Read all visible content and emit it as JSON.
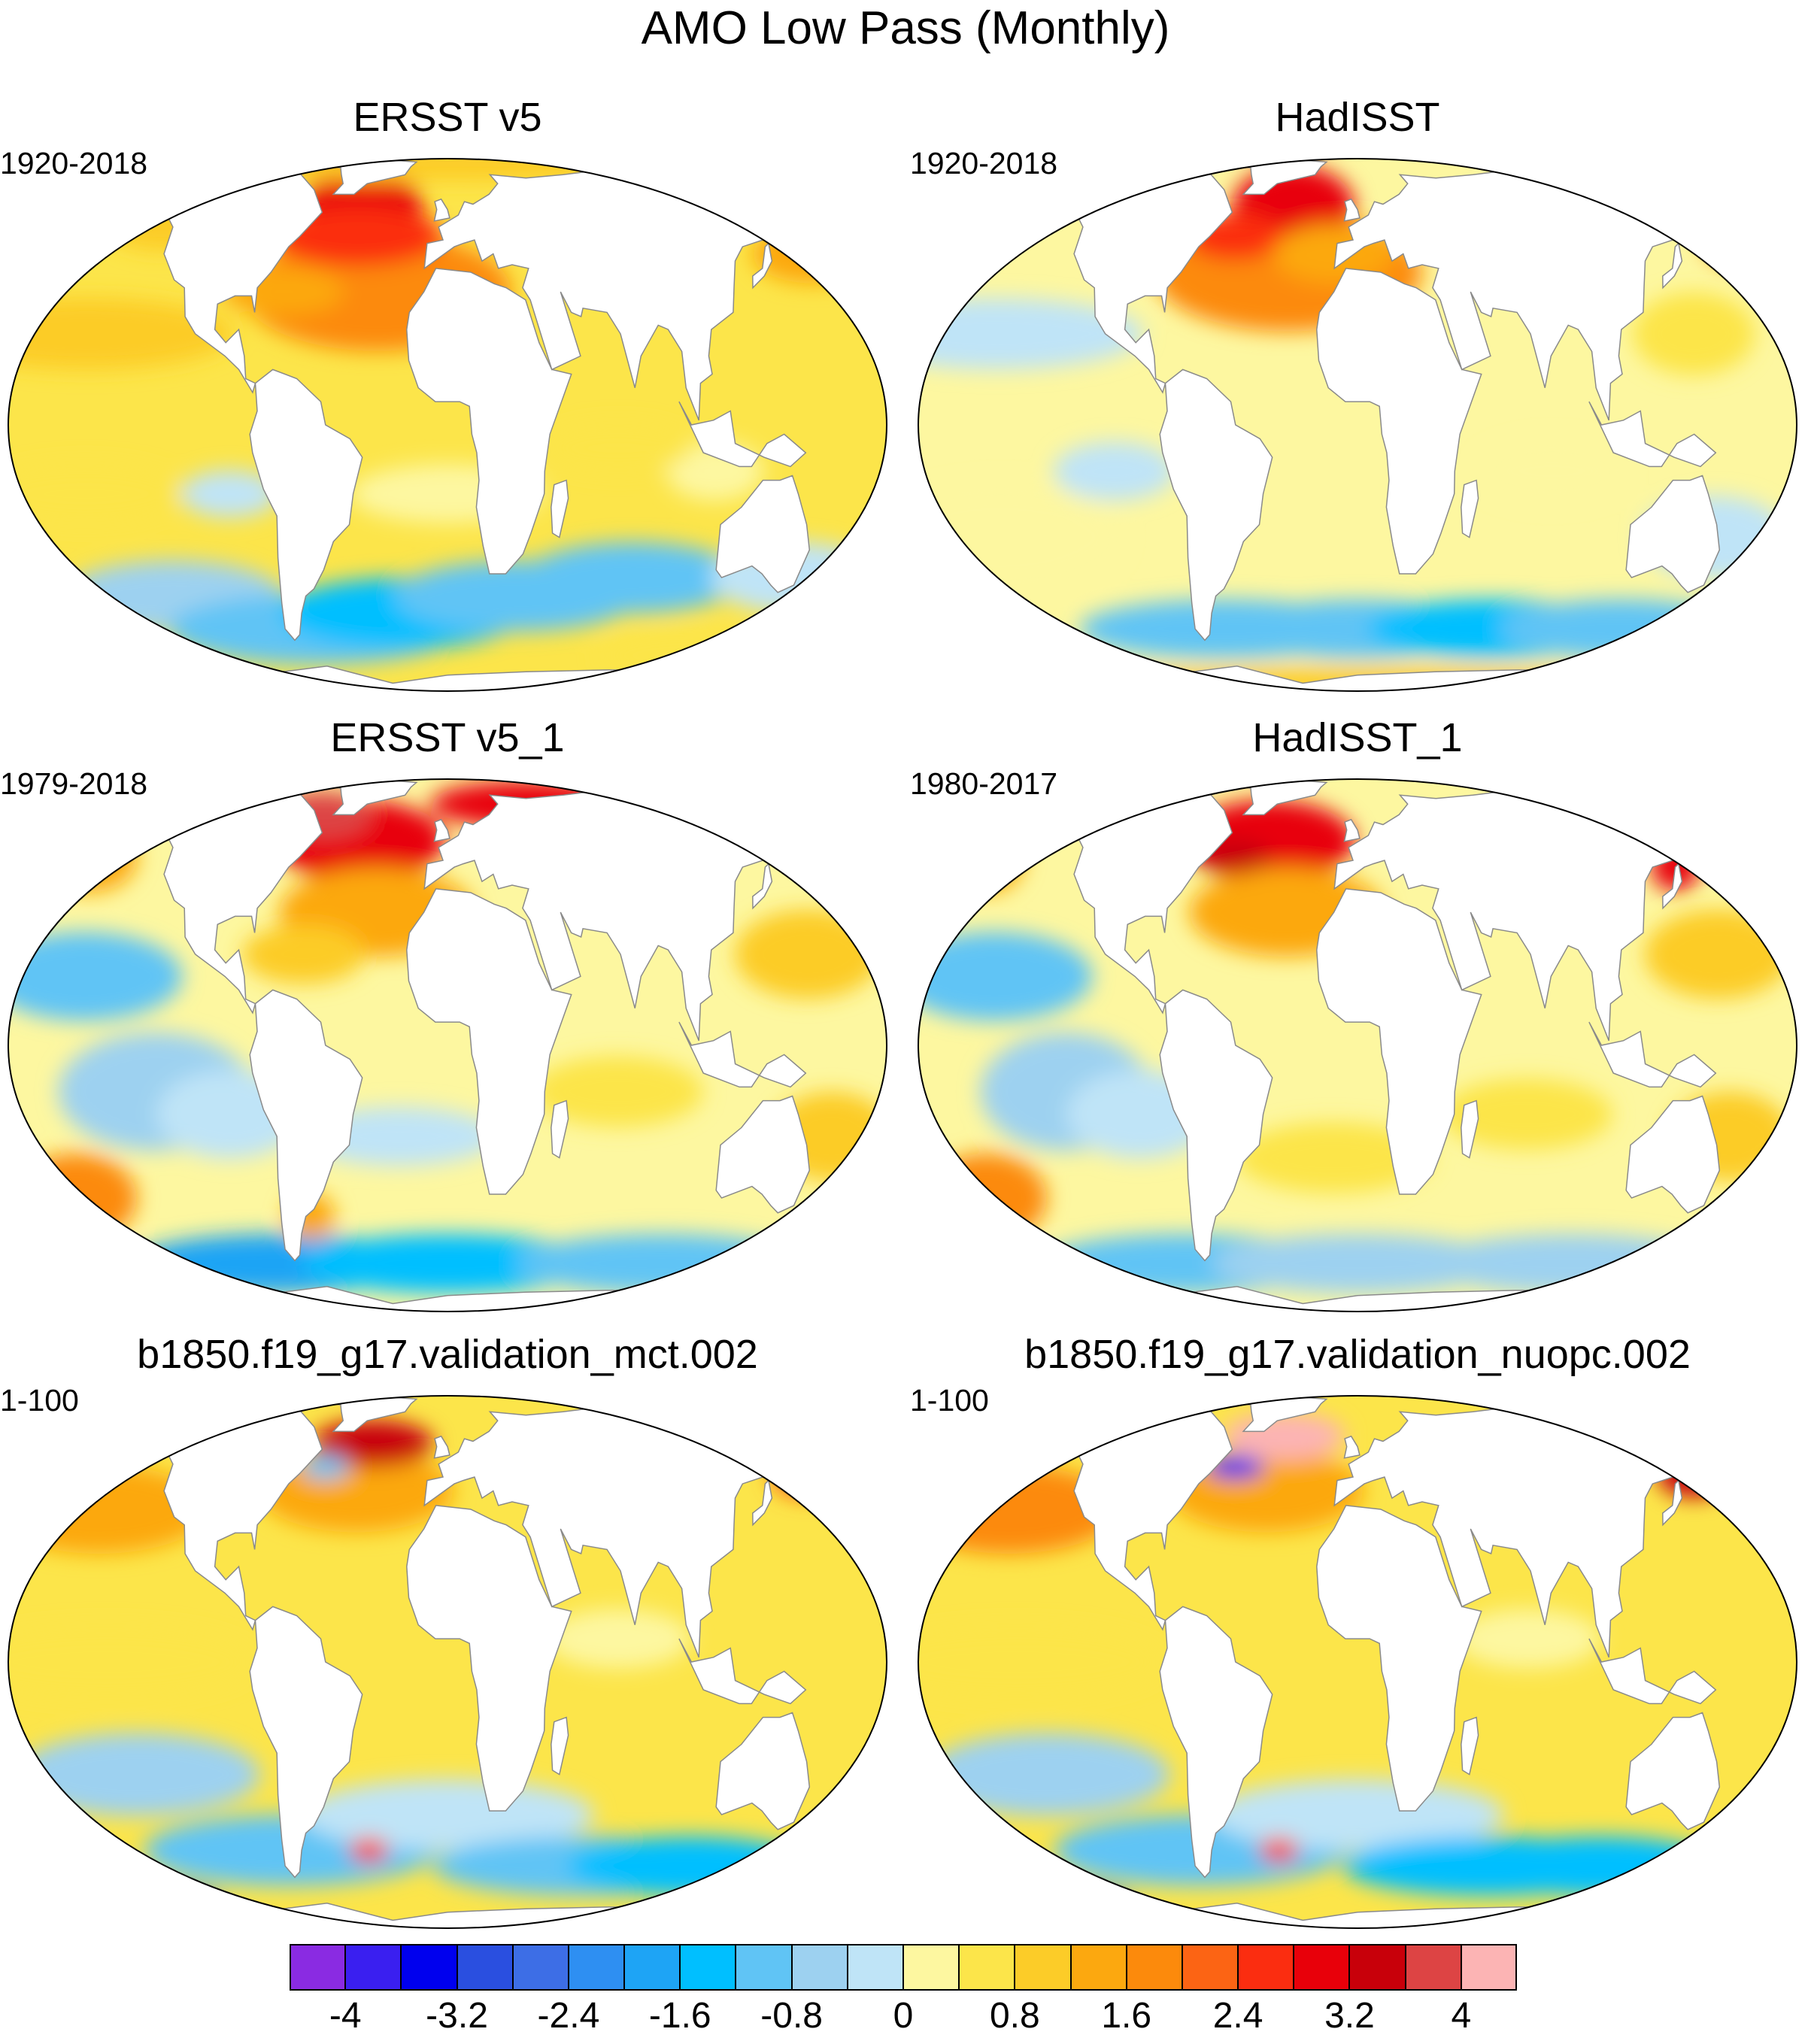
{
  "title": "AMO Low Pass (Monthly)",
  "panels": [
    {
      "title": "ERSST v5",
      "period": "1920-2018",
      "pattern": "ersst"
    },
    {
      "title": "HadISST",
      "period": "1920-2018",
      "pattern": "hadisst"
    },
    {
      "title": "ERSST v5_1",
      "period": "1979-2018",
      "pattern": "ersst1"
    },
    {
      "title": "HadISST_1",
      "period": "1980-2017",
      "pattern": "hadisst1"
    },
    {
      "title": "b1850.f19_g17.validation_mct.002",
      "period": "1-100",
      "pattern": "mct"
    },
    {
      "title": "b1850.f19_g17.validation_nuopc.002",
      "period": "1-100",
      "pattern": "nuopc"
    }
  ],
  "colorbar": {
    "colors": [
      "#8a2be2",
      "#3a1ff0",
      "#0000ee",
      "#2a4fe0",
      "#3d6ee6",
      "#2e8ff2",
      "#1ea4f5",
      "#00bfff",
      "#60c4f5",
      "#9dd1f0",
      "#bfe4f7",
      "#fdf7a0",
      "#fce54a",
      "#fccc28",
      "#fca80f",
      "#fc8a0c",
      "#fc6414",
      "#fb2d10",
      "#e8000a",
      "#c8000a",
      "#dd4444",
      "#fcb4b4"
    ],
    "tick_labels": [
      "-4",
      "-3.2",
      "-2.4",
      "-1.6",
      "-0.8",
      "0",
      "0.8",
      "1.6",
      "2.4",
      "3.2",
      "4"
    ]
  }
}
